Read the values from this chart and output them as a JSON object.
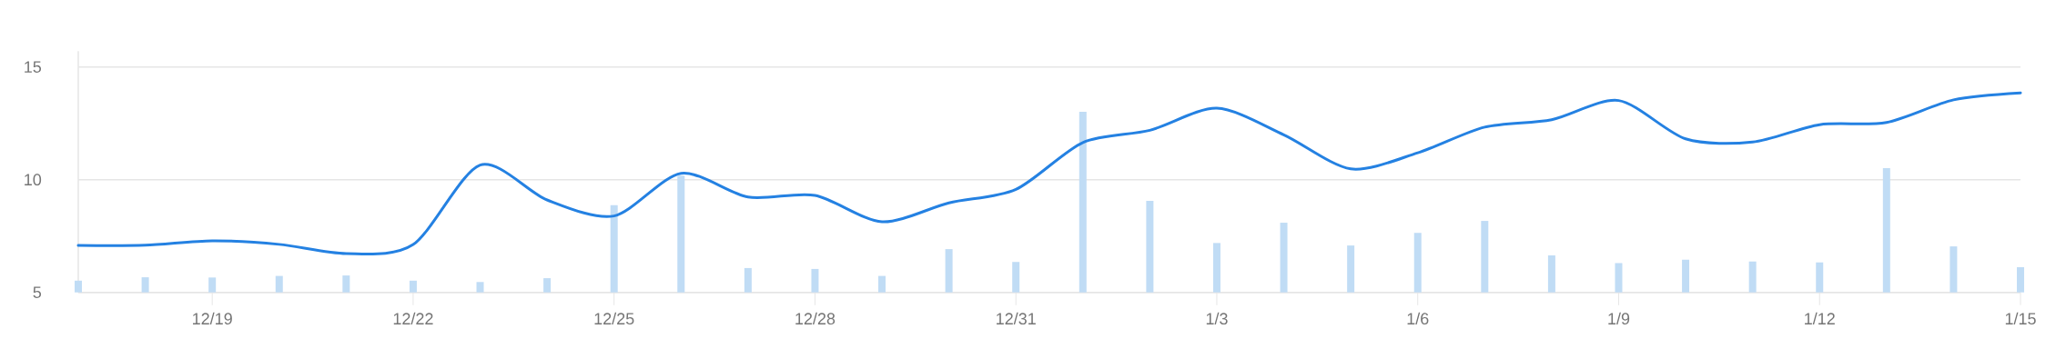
{
  "chart_data": {
    "type": "line",
    "categories": [
      null,
      null,
      "12/19",
      null,
      null,
      "12/22",
      null,
      null,
      "12/25",
      null,
      null,
      "12/28",
      null,
      null,
      "12/31",
      null,
      null,
      "1/3",
      null,
      null,
      "1/6",
      null,
      null,
      "1/9",
      null,
      null,
      "1/12",
      null,
      null,
      "1/15"
    ],
    "series": [
      {
        "type": "bar",
        "color": "#c0dcf5",
        "values": [
          5.52,
          5.67,
          5.66,
          5.73,
          5.75,
          5.52,
          5.46,
          5.63,
          8.87,
          10.18,
          6.08,
          6.04,
          5.73,
          6.92,
          6.35,
          13.01,
          9.06,
          7.19,
          8.09,
          7.08,
          7.64,
          8.17,
          6.64,
          6.3,
          6.45,
          6.37,
          6.33,
          10.51,
          7.04,
          6.12
        ]
      },
      {
        "color": "#2481e2",
        "values": [
          7.08,
          7.09,
          7.29,
          7.13,
          6.72,
          7.12,
          10.65,
          9.1,
          8.39,
          10.28,
          9.23,
          9.3,
          8.13,
          8.97,
          9.57,
          11.65,
          12.19,
          13.17,
          11.99,
          10.48,
          11.19,
          12.33,
          12.66,
          13.51,
          11.81,
          11.67,
          12.44,
          12.54,
          13.54,
          13.85
        ]
      }
    ],
    "ylim": [
      5,
      15.7
    ],
    "yticks": [
      5,
      10,
      15
    ],
    "grid": "y",
    "marker": "none",
    "line_style": "solid"
  }
}
